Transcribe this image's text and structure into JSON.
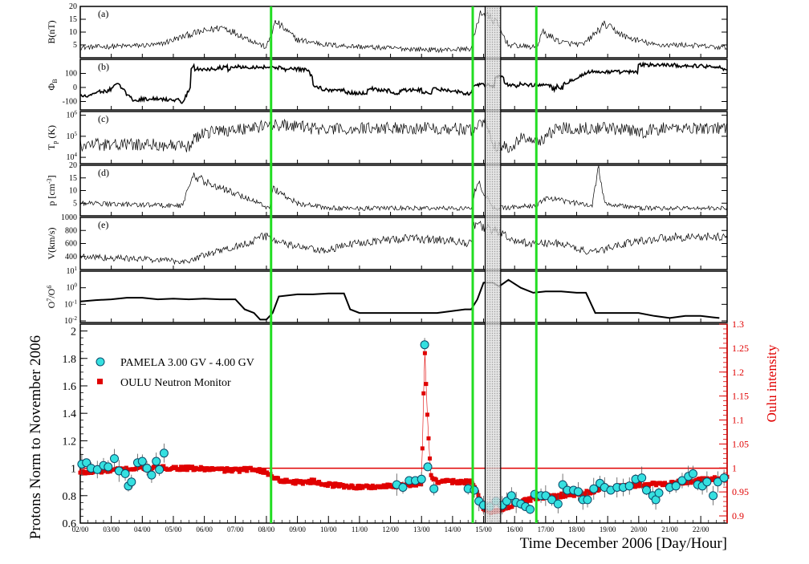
{
  "colors": {
    "pamela": "#35e0e0",
    "pamela_edge": "#0a4a6a",
    "oulu": "#e00000",
    "event_line": "#22dd22",
    "shade": "#bbbbbb"
  },
  "chart_data": [
    {
      "type": "line",
      "panel_label": "(a)",
      "ylabel": "B(nT)",
      "ylim": [
        0,
        20
      ],
      "yticks": [
        5,
        10,
        15,
        20
      ],
      "level_profile": [
        [
          2.0,
          4
        ],
        [
          4.5,
          5
        ],
        [
          5.5,
          9
        ],
        [
          6.6,
          12
        ],
        [
          7.3,
          8
        ],
        [
          8.0,
          4
        ],
        [
          8.3,
          14
        ],
        [
          9.0,
          7
        ],
        [
          10.0,
          5
        ],
        [
          11.5,
          4
        ],
        [
          13.5,
          3
        ],
        [
          14.6,
          3.5
        ],
        [
          14.9,
          18
        ],
        [
          15.4,
          14
        ],
        [
          15.8,
          5
        ],
        [
          16.7,
          4
        ],
        [
          16.9,
          10
        ],
        [
          17.5,
          6
        ],
        [
          18.2,
          5
        ],
        [
          18.9,
          13
        ],
        [
          19.6,
          8
        ],
        [
          20.5,
          5
        ],
        [
          21.5,
          5
        ],
        [
          22.6,
          4
        ]
      ]
    },
    {
      "type": "line",
      "panel_label": "(b)",
      "ylabel": "Φ_B",
      "ylim": [
        -160,
        200
      ],
      "yticks": [
        -100,
        0,
        100
      ],
      "level_profile": [
        [
          2.0,
          -60
        ],
        [
          2.8,
          -30
        ],
        [
          3.2,
          80
        ],
        [
          3.6,
          -80
        ],
        [
          5.3,
          -90
        ],
        [
          5.6,
          150
        ],
        [
          8.1,
          140
        ],
        [
          9.3,
          110
        ],
        [
          9.6,
          -20
        ],
        [
          11.0,
          -30
        ],
        [
          13.0,
          -20
        ],
        [
          14.6,
          -30
        ],
        [
          14.7,
          80
        ],
        [
          15.3,
          60
        ],
        [
          15.9,
          30
        ],
        [
          16.5,
          10
        ],
        [
          17.6,
          10
        ],
        [
          18.4,
          150
        ],
        [
          22.6,
          140
        ]
      ],
      "step_mode": true
    },
    {
      "type": "line",
      "panel_label": "(c)",
      "ylabel": "T_p (K)",
      "yscale": "log",
      "ylim": [
        5000,
        1500000
      ],
      "yticks": [
        10000,
        100000,
        1000000
      ],
      "level_profile": [
        [
          2.0,
          40000
        ],
        [
          4.5,
          40000
        ],
        [
          5.5,
          30000
        ],
        [
          6.0,
          150000
        ],
        [
          7.5,
          250000
        ],
        [
          8.3,
          350000
        ],
        [
          10.0,
          200000
        ],
        [
          11.5,
          250000
        ],
        [
          13.5,
          250000
        ],
        [
          14.6,
          200000
        ],
        [
          15.0,
          500000
        ],
        [
          15.3,
          30000
        ],
        [
          15.9,
          30000
        ],
        [
          16.3,
          90000
        ],
        [
          16.8,
          50000
        ],
        [
          17.5,
          250000
        ],
        [
          19.0,
          250000
        ],
        [
          20.0,
          150000
        ],
        [
          21.0,
          250000
        ],
        [
          22.6,
          250000
        ]
      ]
    },
    {
      "type": "line",
      "panel_label": "(d)",
      "ylabel": "p [cm^-3]",
      "ylim": [
        0,
        20
      ],
      "yticks": [
        5,
        10,
        15,
        20
      ],
      "level_profile": [
        [
          2.0,
          5
        ],
        [
          5.3,
          4
        ],
        [
          5.6,
          16
        ],
        [
          6.3,
          12
        ],
        [
          7.6,
          6
        ],
        [
          8.1,
          3
        ],
        [
          8.2,
          11
        ],
        [
          9.0,
          5
        ],
        [
          10.0,
          3
        ],
        [
          12.0,
          3
        ],
        [
          14.6,
          3
        ],
        [
          14.8,
          14
        ],
        [
          15.3,
          3
        ],
        [
          16.7,
          4
        ],
        [
          17.0,
          7
        ],
        [
          18.5,
          4
        ],
        [
          18.7,
          20
        ],
        [
          18.9,
          5
        ],
        [
          20.0,
          3
        ],
        [
          22.6,
          3
        ]
      ]
    },
    {
      "type": "line",
      "panel_label": "(e)",
      "ylabel": "V(km/s)",
      "ylim": [
        200,
        1000
      ],
      "yticks": [
        400,
        600,
        800,
        1000
      ],
      "level_profile": [
        [
          2.0,
          400
        ],
        [
          4.5,
          350
        ],
        [
          5.4,
          320
        ],
        [
          6.0,
          420
        ],
        [
          7.0,
          550
        ],
        [
          8.0,
          720
        ],
        [
          8.5,
          600
        ],
        [
          9.8,
          480
        ],
        [
          11.0,
          620
        ],
        [
          12.5,
          680
        ],
        [
          13.8,
          650
        ],
        [
          14.6,
          600
        ],
        [
          14.7,
          900
        ],
        [
          15.5,
          780
        ],
        [
          16.0,
          620
        ],
        [
          16.6,
          600
        ],
        [
          17.5,
          600
        ],
        [
          18.5,
          450
        ],
        [
          19.5,
          600
        ],
        [
          21.0,
          700
        ],
        [
          22.6,
          700
        ]
      ]
    },
    {
      "type": "line",
      "panel_label": "",
      "ylabel": "O^7/O^6",
      "yscale": "log",
      "ylim": [
        0.008,
        10
      ],
      "yticks": [
        0.01,
        0.1,
        1,
        10
      ],
      "points": [
        [
          2.0,
          0.15
        ],
        [
          2.5,
          0.18
        ],
        [
          3.0,
          0.2
        ],
        [
          3.5,
          0.25
        ],
        [
          4.0,
          0.25
        ],
        [
          4.5,
          0.2
        ],
        [
          5.0,
          0.22
        ],
        [
          5.5,
          0.2
        ],
        [
          6.0,
          0.22
        ],
        [
          6.5,
          0.2
        ],
        [
          7.0,
          0.2
        ],
        [
          7.3,
          0.05
        ],
        [
          7.6,
          0.03
        ],
        [
          7.8,
          0.012
        ],
        [
          8.0,
          0.012
        ],
        [
          8.2,
          0.03
        ],
        [
          8.4,
          0.3
        ],
        [
          9.0,
          0.4
        ],
        [
          9.5,
          0.4
        ],
        [
          10.0,
          0.45
        ],
        [
          10.5,
          0.45
        ],
        [
          10.7,
          0.05
        ],
        [
          11.0,
          0.03
        ],
        [
          12.0,
          0.03
        ],
        [
          13.0,
          0.03
        ],
        [
          13.5,
          0.03
        ],
        [
          14.0,
          0.04
        ],
        [
          14.4,
          0.05
        ],
        [
          14.6,
          0.05
        ],
        [
          14.8,
          0.2
        ],
        [
          15.0,
          2.0
        ],
        [
          15.3,
          2.0
        ],
        [
          15.5,
          1.2
        ],
        [
          15.8,
          3.0
        ],
        [
          16.2,
          1.0
        ],
        [
          16.6,
          0.5
        ],
        [
          17.0,
          0.6
        ],
        [
          17.5,
          0.6
        ],
        [
          18.0,
          0.5
        ],
        [
          18.3,
          0.5
        ],
        [
          18.6,
          0.03
        ],
        [
          19.0,
          0.03
        ],
        [
          19.5,
          0.03
        ],
        [
          20.0,
          0.03
        ],
        [
          20.5,
          0.02
        ],
        [
          21.0,
          0.015
        ],
        [
          21.5,
          0.02
        ],
        [
          22.0,
          0.02
        ],
        [
          22.6,
          0.015
        ]
      ]
    },
    {
      "type": "scatter",
      "ylabel": "Protons Norm to November 2006",
      "xlabel": "Time December 2006 [Day/Hour]",
      "ylim": [
        0.6,
        2.05
      ],
      "yticks": [
        0.6,
        0.8,
        1,
        1.2,
        1.4,
        1.6,
        1.8,
        2
      ],
      "y2label": "Oulu intensity",
      "y2lim": [
        0.885,
        1.3
      ],
      "y2ticks": [
        0.9,
        0.95,
        1,
        1.05,
        1.1,
        1.15,
        1.2,
        1.25,
        1.3
      ],
      "xlim": [
        2.0,
        22.85
      ],
      "xticks": [
        "02/00",
        "03/00",
        "04/00",
        "05/00",
        "06/00",
        "07/00",
        "08/00",
        "09/00",
        "10/00",
        "11/00",
        "12/00",
        "13/00",
        "14/00",
        "15/00",
        "16/00",
        "17/00",
        "18/00",
        "19/00",
        "20/00",
        "21/00",
        "22/00"
      ],
      "reference_line": 1,
      "event_lines": [
        8.15,
        14.65,
        16.7
      ],
      "shaded_interval": [
        15.05,
        15.55
      ],
      "series": [
        {
          "name": "PAMELA 3.00 GV - 4.00 GV",
          "marker": "circle",
          "points": [
            [
              2.05,
              1.03
            ],
            [
              2.2,
              1.04
            ],
            [
              2.35,
              1.0
            ],
            [
              2.55,
              0.99
            ],
            [
              2.75,
              1.02
            ],
            [
              2.9,
              1.01
            ],
            [
              3.1,
              1.07
            ],
            [
              3.25,
              0.98
            ],
            [
              3.45,
              0.96
            ],
            [
              3.55,
              0.87
            ],
            [
              3.65,
              0.9
            ],
            [
              3.85,
              1.04
            ],
            [
              4.0,
              1.05
            ],
            [
              4.15,
              1.0
            ],
            [
              4.3,
              0.95
            ],
            [
              4.45,
              1.05
            ],
            [
              4.55,
              0.99
            ],
            [
              4.7,
              1.11
            ],
            [
              12.2,
              0.88
            ],
            [
              12.4,
              0.86
            ],
            [
              12.6,
              0.91
            ],
            [
              12.8,
              0.91
            ],
            [
              13.0,
              0.92
            ],
            [
              13.1,
              1.9
            ],
            [
              13.2,
              1.01
            ],
            [
              13.4,
              0.85
            ],
            [
              14.5,
              0.85
            ],
            [
              14.7,
              0.84
            ],
            [
              14.85,
              0.76
            ],
            [
              15.0,
              0.73
            ],
            [
              15.2,
              0.72
            ],
            [
              15.4,
              0.76
            ],
            [
              15.6,
              0.73
            ],
            [
              15.75,
              0.76
            ],
            [
              15.9,
              0.8
            ],
            [
              16.05,
              0.75
            ],
            [
              16.2,
              0.74
            ],
            [
              16.35,
              0.72
            ],
            [
              16.5,
              0.7
            ],
            [
              16.65,
              0.81
            ],
            [
              16.85,
              0.8
            ],
            [
              17.0,
              0.8
            ],
            [
              17.2,
              0.77
            ],
            [
              17.4,
              0.74
            ],
            [
              17.55,
              0.88
            ],
            [
              17.7,
              0.84
            ],
            [
              17.9,
              0.84
            ],
            [
              18.05,
              0.83
            ],
            [
              18.2,
              0.77
            ],
            [
              18.35,
              0.77
            ],
            [
              18.55,
              0.85
            ],
            [
              18.75,
              0.89
            ],
            [
              18.9,
              0.86
            ],
            [
              19.1,
              0.84
            ],
            [
              19.3,
              0.86
            ],
            [
              19.5,
              0.86
            ],
            [
              19.7,
              0.87
            ],
            [
              19.9,
              0.92
            ],
            [
              20.1,
              0.93
            ],
            [
              20.25,
              0.84
            ],
            [
              20.45,
              0.8
            ],
            [
              20.55,
              0.77
            ],
            [
              20.65,
              0.82
            ],
            [
              21.0,
              0.86
            ],
            [
              21.2,
              0.87
            ],
            [
              21.4,
              0.91
            ],
            [
              21.6,
              0.94
            ],
            [
              21.75,
              0.96
            ],
            [
              21.9,
              0.88
            ],
            [
              22.05,
              0.87
            ],
            [
              22.2,
              0.9
            ],
            [
              22.4,
              0.8
            ],
            [
              22.55,
              0.9
            ],
            [
              22.75,
              0.93
            ]
          ]
        },
        {
          "name": "OULU Neutron Monitor",
          "marker": "square",
          "axis": "right",
          "level_profile": [
            [
              2.0,
              0.99
            ],
            [
              3.0,
              0.995
            ],
            [
              4.0,
              1.0
            ],
            [
              5.0,
              1.0
            ],
            [
              6.0,
              0.998
            ],
            [
              7.0,
              0.995
            ],
            [
              7.7,
              0.998
            ],
            [
              8.0,
              0.99
            ],
            [
              8.4,
              0.975
            ],
            [
              9.0,
              0.97
            ],
            [
              9.5,
              0.972
            ],
            [
              10.0,
              0.965
            ],
            [
              11.0,
              0.96
            ],
            [
              12.0,
              0.962
            ],
            [
              13.0,
              0.968
            ],
            [
              13.1,
              1.25
            ],
            [
              13.2,
              1.09
            ],
            [
              13.3,
              0.985
            ],
            [
              13.5,
              0.97
            ],
            [
              14.0,
              0.972
            ],
            [
              14.6,
              0.97
            ],
            [
              14.8,
              0.95
            ],
            [
              15.0,
              0.915
            ],
            [
              15.3,
              0.908
            ],
            [
              15.6,
              0.912
            ],
            [
              16.0,
              0.925
            ],
            [
              16.5,
              0.935
            ],
            [
              17.0,
              0.94
            ],
            [
              18.0,
              0.945
            ],
            [
              19.0,
              0.958
            ],
            [
              20.0,
              0.965
            ],
            [
              21.0,
              0.968
            ],
            [
              22.0,
              0.975
            ],
            [
              22.6,
              0.978
            ]
          ]
        }
      ]
    }
  ]
}
